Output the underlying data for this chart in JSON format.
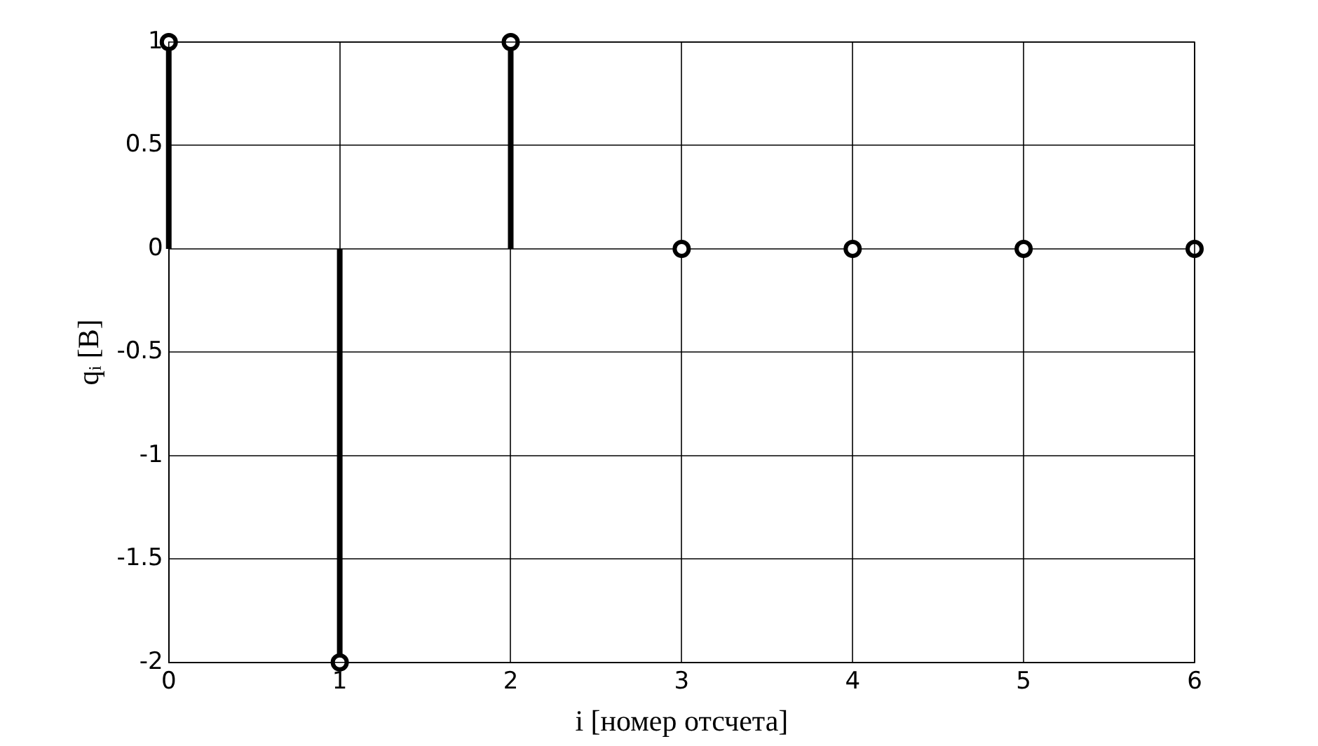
{
  "chart_data": {
    "type": "lollipop",
    "xlabel": "i [номер отсчета]",
    "ylabel": "qᵢ [В]",
    "x": [
      0,
      1,
      2,
      3,
      4,
      5,
      6
    ],
    "values": [
      1,
      -2,
      1,
      0,
      0,
      0,
      0
    ],
    "color": "#000000",
    "xlim": [
      0,
      6
    ],
    "xticks": [
      0,
      1,
      2,
      3,
      4,
      5,
      6
    ],
    "ylim": [
      -2,
      1
    ],
    "yticks": [
      -2,
      -1.5,
      -1,
      -0.5,
      0,
      0.5,
      1
    ],
    "grid": true,
    "marker": "circle",
    "legend": false
  }
}
